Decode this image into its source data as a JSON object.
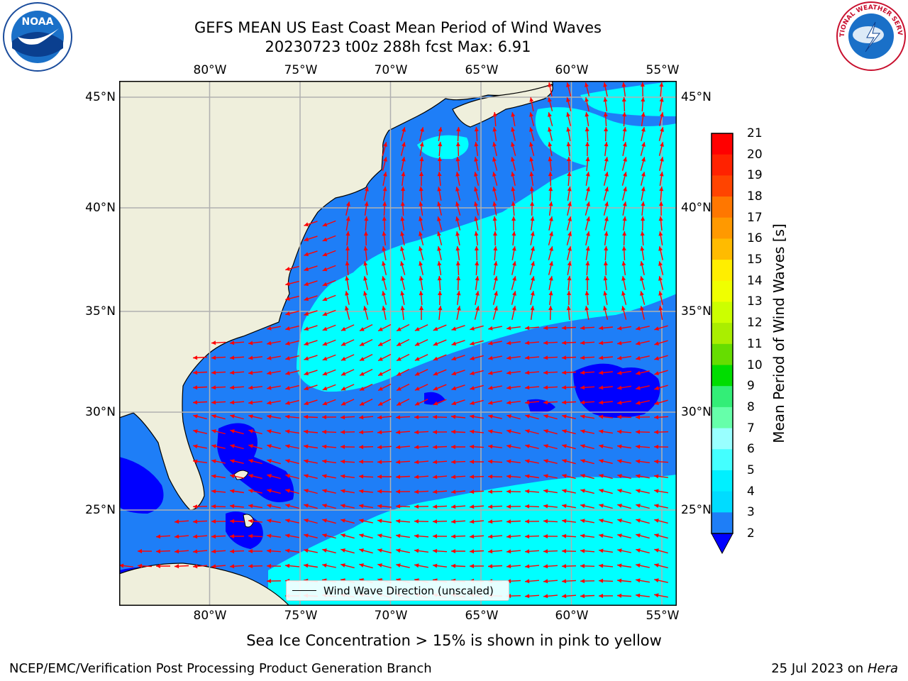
{
  "header": {
    "title_line1": "GEFS MEAN US East Coast Mean Period of Wind Waves",
    "title_line2": "20230723 t00z 288h fcst   Max: 6.91"
  },
  "map": {
    "lon_ticks": [
      "80°W",
      "75°W",
      "70°W",
      "65°W",
      "60°W",
      "55°W"
    ],
    "lat_ticks": [
      "45°N",
      "40°N",
      "35°N",
      "30°N",
      "25°N"
    ],
    "lon_range": [
      -85,
      -54
    ],
    "lat_range": [
      20.5,
      45.8
    ],
    "gridlines": true,
    "colors": {
      "land": "#efefdc",
      "ocean_2_4": "#1e7ef7",
      "ocean_4_6": "#00ffff",
      "ocean_low": "#0000ff",
      "arrows": "#ff0000"
    },
    "legend_label": "Wind Wave Direction (unscaled)"
  },
  "colorbar": {
    "label": "Mean Period of Wind Waves [s]",
    "ticks": [
      "21",
      "20",
      "19",
      "18",
      "17",
      "16",
      "15",
      "14",
      "13",
      "12",
      "11",
      "10",
      "9",
      "8",
      "7",
      "6",
      "5",
      "4",
      "3",
      "2"
    ],
    "colors": [
      "#ff0000",
      "#ff2200",
      "#ff4400",
      "#ff7700",
      "#ff9900",
      "#ffbb00",
      "#ffee00",
      "#f0ff00",
      "#ccff00",
      "#aaee00",
      "#66dd00",
      "#00dd00",
      "#33ee77",
      "#66ffaa",
      "#99ffff",
      "#44ffff",
      "#00f0ff",
      "#00dcff",
      "#1e7ef7"
    ],
    "extend_color": "#0000ff"
  },
  "chart_data": {
    "type": "heatmap",
    "title": "GEFS MEAN US East Coast Mean Period of Wind Waves",
    "subtitle": "20230723 t00z 288h fcst   Max: 6.91",
    "max_value": 6.91,
    "colorbar_range": [
      2,
      21
    ],
    "units": "s"
  },
  "note": "Sea Ice Concentration > 15% is shown in pink to yellow",
  "footer": {
    "left": "NCEP/EMC/Verification Post Processing Product Generation Branch",
    "date": "25 Jul 2023 on ",
    "machine": "Hera"
  },
  "logos": {
    "noaa_text": "NOAA",
    "nws_text": "NATIONAL WEATHER SERVICE"
  }
}
